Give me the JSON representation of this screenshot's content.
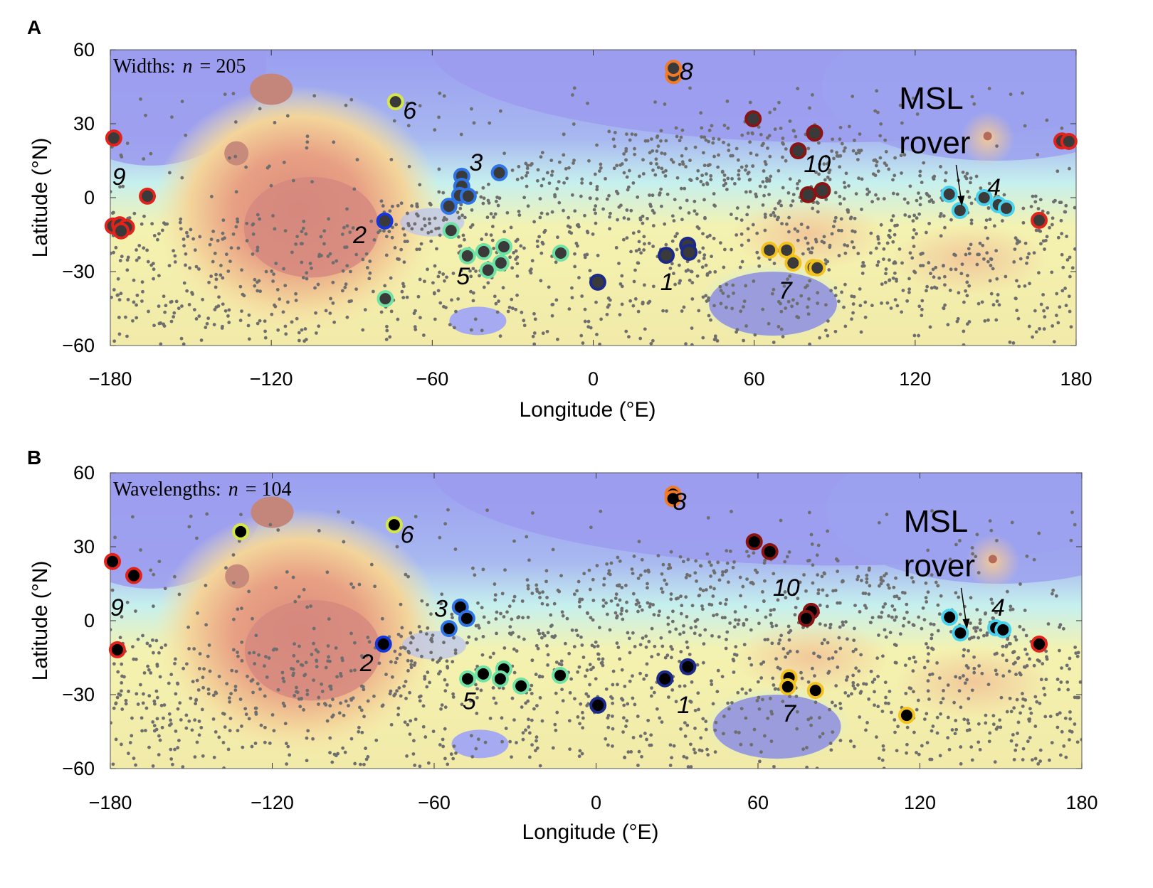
{
  "chart_data": [
    {
      "type": "scatter",
      "panel_label": "A",
      "annotation": "Widths: n = 205",
      "annotation_prefix": "Widths:",
      "annotation_var": "n",
      "annotation_value": "= 205",
      "xlabel": "Longitude (°E)",
      "ylabel": "Latitude (°N)",
      "xlim": [
        -180,
        180
      ],
      "ylim": [
        -60,
        60
      ],
      "xticks": [
        -180,
        -120,
        -60,
        0,
        60,
        120,
        180
      ],
      "yticks": [
        60,
        30,
        0,
        -30,
        -60
      ],
      "xtick_labels": [
        "−180",
        "−120",
        "−60",
        "0",
        "60",
        "120",
        "180"
      ],
      "ytick_labels": [
        "60",
        "30",
        "0",
        "−30",
        "−60"
      ],
      "rover_label": [
        "MSL",
        "rover"
      ],
      "rover_position": [
        137.4,
        -4.6
      ],
      "group_labels": [
        {
          "text": "1",
          "lon": 27.5,
          "lat": -34
        },
        {
          "text": "2",
          "lon": -87,
          "lat": -15
        },
        {
          "text": "3",
          "lon": -43.7,
          "lat": 14.4
        },
        {
          "text": "4",
          "lon": 149.4,
          "lat": 4.3
        },
        {
          "text": "5",
          "lon": -48.5,
          "lat": -31.7
        },
        {
          "text": "6",
          "lon": -68.4,
          "lat": 35.5
        },
        {
          "text": "7",
          "lon": 71.6,
          "lat": -37.5
        },
        {
          "text": "8",
          "lon": 34.7,
          "lat": 51.3
        },
        {
          "text": "9",
          "lon": -176.8,
          "lat": 8.7
        },
        {
          "text": "10",
          "lon": 83.5,
          "lat": 13.8
        }
      ],
      "points": [
        {
          "group": 9,
          "lon": -178.7,
          "lat": 24.2
        },
        {
          "group": 9,
          "lon": -166.2,
          "lat": 0.6
        },
        {
          "group": 9,
          "lon": -179,
          "lat": -11.5
        },
        {
          "group": 9,
          "lon": -176.5,
          "lat": -11
        },
        {
          "group": 9,
          "lon": -174,
          "lat": -12
        },
        {
          "group": 9,
          "lon": -176,
          "lat": -13.5
        },
        {
          "group": 9,
          "lon": 166.2,
          "lat": -9.2
        },
        {
          "group": 9,
          "lon": 174.7,
          "lat": 23
        },
        {
          "group": 9,
          "lon": 177.3,
          "lat": 22.8
        },
        {
          "group": 2,
          "lon": -77.7,
          "lat": -9.5
        },
        {
          "group": 3,
          "lon": -49,
          "lat": 8.7
        },
        {
          "group": 3,
          "lon": -49,
          "lat": 4.6
        },
        {
          "group": 3,
          "lon": -49.8,
          "lat": 0.9
        },
        {
          "group": 3,
          "lon": -46.6,
          "lat": 0.6
        },
        {
          "group": 3,
          "lon": -53.8,
          "lat": -3.5
        },
        {
          "group": 3,
          "lon": -35,
          "lat": 10.1
        },
        {
          "group": 5,
          "lon": -53,
          "lat": -13.3
        },
        {
          "group": 5,
          "lon": -77.5,
          "lat": -41
        },
        {
          "group": 5,
          "lon": -46.9,
          "lat": -23.6
        },
        {
          "group": 5,
          "lon": -40.8,
          "lat": -21.9
        },
        {
          "group": 5,
          "lon": -33.3,
          "lat": -19.9
        },
        {
          "group": 5,
          "lon": -34.4,
          "lat": -26.5
        },
        {
          "group": 5,
          "lon": -39.2,
          "lat": -29.4
        },
        {
          "group": 5,
          "lon": -12.1,
          "lat": -22.5
        },
        {
          "group": 6,
          "lon": -73.7,
          "lat": 38.9
        },
        {
          "group": 8,
          "lon": 29.9,
          "lat": 49.5
        },
        {
          "group": 8,
          "lon": 29.9,
          "lat": 52.5
        },
        {
          "group": 1,
          "lon": 1.7,
          "lat": -34.3
        },
        {
          "group": 1,
          "lon": 27.2,
          "lat": -23.4
        },
        {
          "group": 1,
          "lon": 35.2,
          "lat": -19.3
        },
        {
          "group": 1,
          "lon": 35.7,
          "lat": -22.2
        },
        {
          "group": 7,
          "lon": 65.7,
          "lat": -21.3
        },
        {
          "group": 7,
          "lon": 72.1,
          "lat": -21.3
        },
        {
          "group": 7,
          "lon": 74.5,
          "lat": -26.5
        },
        {
          "group": 7,
          "lon": 82,
          "lat": -28.3
        },
        {
          "group": 7,
          "lon": 83.5,
          "lat": -28.5
        },
        {
          "group": 10,
          "lon": 59.6,
          "lat": 32
        },
        {
          "group": 10,
          "lon": 82.5,
          "lat": 26.2
        },
        {
          "group": 10,
          "lon": 76.4,
          "lat": 19
        },
        {
          "group": 10,
          "lon": 80.1,
          "lat": 1.2
        },
        {
          "group": 10,
          "lon": 85.4,
          "lat": 2.9
        },
        {
          "group": 4,
          "lon": 132.7,
          "lat": 1.4
        },
        {
          "group": 4,
          "lon": 136.7,
          "lat": -5.2
        },
        {
          "group": 4,
          "lon": 145.7,
          "lat": 0
        },
        {
          "group": 4,
          "lon": 151,
          "lat": -2.9
        },
        {
          "group": 4,
          "lon": 154,
          "lat": -4.3
        }
      ]
    },
    {
      "type": "scatter",
      "panel_label": "B",
      "annotation": "Wavelengths: n = 104",
      "annotation_prefix": "Wavelengths:",
      "annotation_var": "n",
      "annotation_value": "= 104",
      "xlabel": "Longitude (°E)",
      "ylabel": "Latitude (°N)",
      "xlim": [
        -180,
        180
      ],
      "ylim": [
        -60,
        60
      ],
      "xticks": [
        -180,
        -120,
        -60,
        0,
        60,
        120,
        180
      ],
      "yticks": [
        60,
        30,
        0,
        -30,
        -60
      ],
      "xtick_labels": [
        "−180",
        "−120",
        "−60",
        "0",
        "60",
        "120",
        "180"
      ],
      "ytick_labels": [
        "60",
        "30",
        "0",
        "−30",
        "−60"
      ],
      "rover_label": [
        "MSL",
        "rover"
      ],
      "rover_position": [
        137.4,
        -4.6
      ],
      "group_labels": [
        {
          "text": "1",
          "lon": 32.5,
          "lat": -34
        },
        {
          "text": "2",
          "lon": -85,
          "lat": -17
        },
        {
          "text": "3",
          "lon": -57.5,
          "lat": 5
        },
        {
          "text": "4",
          "lon": 149,
          "lat": 5.5
        },
        {
          "text": "5",
          "lon": -47,
          "lat": -32.5
        },
        {
          "text": "6",
          "lon": -70,
          "lat": 35
        },
        {
          "text": "7",
          "lon": 71.5,
          "lat": -37.5
        },
        {
          "text": "8",
          "lon": 31,
          "lat": 48.5
        },
        {
          "text": "9",
          "lon": -177.5,
          "lat": 5.5
        },
        {
          "text": "10",
          "lon": 70.5,
          "lat": 13.5
        }
      ],
      "points": [
        {
          "group": 9,
          "lon": -179.2,
          "lat": 24
        },
        {
          "group": 9,
          "lon": -171.3,
          "lat": 18.3
        },
        {
          "group": 9,
          "lon": -177.4,
          "lat": -11.8
        },
        {
          "group": 9,
          "lon": 164.2,
          "lat": -9.5
        },
        {
          "group": 6,
          "lon": -131.7,
          "lat": 36.1
        },
        {
          "group": 6,
          "lon": -74.8,
          "lat": 38.9
        },
        {
          "group": 2,
          "lon": -78.8,
          "lat": -9.5
        },
        {
          "group": 3,
          "lon": -50.3,
          "lat": 5.5
        },
        {
          "group": 3,
          "lon": -47.9,
          "lat": 0.9
        },
        {
          "group": 3,
          "lon": -54.5,
          "lat": -3.2
        },
        {
          "group": 5,
          "lon": -47.6,
          "lat": -23.6
        },
        {
          "group": 5,
          "lon": -41.8,
          "lat": -21.6
        },
        {
          "group": 5,
          "lon": -34.2,
          "lat": -19.6
        },
        {
          "group": 5,
          "lon": -35.5,
          "lat": -23.6
        },
        {
          "group": 5,
          "lon": -27.8,
          "lat": -26.5
        },
        {
          "group": 5,
          "lon": -13.3,
          "lat": -22.2
        },
        {
          "group": 1,
          "lon": 0.7,
          "lat": -34.3
        },
        {
          "group": 1,
          "lon": 25.5,
          "lat": -23.6
        },
        {
          "group": 1,
          "lon": 34,
          "lat": -18.7
        },
        {
          "group": 8,
          "lon": 28.5,
          "lat": 51.3
        },
        {
          "group": 8,
          "lon": 28.5,
          "lat": 49.5
        },
        {
          "group": 10,
          "lon": 58.6,
          "lat": 32
        },
        {
          "group": 10,
          "lon": 64.4,
          "lat": 28
        },
        {
          "group": 10,
          "lon": 79.7,
          "lat": 3.8
        },
        {
          "group": 10,
          "lon": 77.9,
          "lat": 0.9
        },
        {
          "group": 7,
          "lon": 71.5,
          "lat": -23.1
        },
        {
          "group": 7,
          "lon": 71,
          "lat": -26.8
        },
        {
          "group": 7,
          "lon": 81.3,
          "lat": -28.3
        },
        {
          "group": 7,
          "lon": 115.1,
          "lat": -38.4
        },
        {
          "group": 4,
          "lon": 131,
          "lat": 1.4
        },
        {
          "group": 4,
          "lon": 135,
          "lat": -5
        },
        {
          "group": 4,
          "lon": 148.1,
          "lat": -2.9
        },
        {
          "group": 4,
          "lon": 150.8,
          "lat": -3.7
        }
      ]
    }
  ],
  "group_colors": {
    "1": "#1b2a8a",
    "2": "#1236e0",
    "3": "#2f74e6",
    "4": "#48d2ee",
    "5": "#6fe3a6",
    "6": "#d4e64a",
    "7": "#f2c21e",
    "8": "#f07a26",
    "9": "#e2231c",
    "10": "#8a1414"
  },
  "marker_fill": [
    "#3a3a3a",
    "#000000"
  ],
  "background_dots_color": "#6e6e6e"
}
